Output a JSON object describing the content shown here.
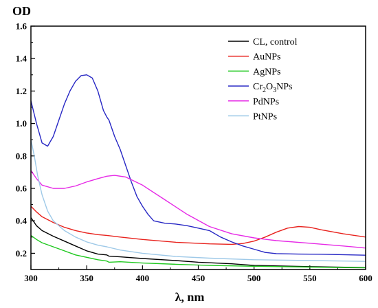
{
  "chart_data": {
    "type": "line",
    "ylabel": "OD",
    "xlabel": "λ, nm",
    "xlim": [
      300,
      600
    ],
    "ylim": [
      0.1,
      1.6
    ],
    "xticks": [
      300,
      350,
      400,
      450,
      500,
      550,
      600
    ],
    "yticks": [
      0.2,
      0.4,
      0.6,
      0.8,
      1.0,
      1.2,
      1.4,
      1.6
    ],
    "ytick_labels": [
      "0.2",
      "0.4",
      "0.6",
      "0.8",
      "1.0",
      "1.2",
      "1.4",
      "1.6"
    ],
    "legend_position": "top-right",
    "series": [
      {
        "name": "CL, control",
        "legend": [
          "CL, control"
        ],
        "color": "#000000",
        "points": [
          [
            300,
            0.42
          ],
          [
            305,
            0.37
          ],
          [
            310,
            0.34
          ],
          [
            320,
            0.305
          ],
          [
            330,
            0.275
          ],
          [
            340,
            0.245
          ],
          [
            350,
            0.215
          ],
          [
            360,
            0.195
          ],
          [
            368,
            0.19
          ],
          [
            370,
            0.182
          ],
          [
            380,
            0.178
          ],
          [
            400,
            0.168
          ],
          [
            430,
            0.155
          ],
          [
            450,
            0.145
          ],
          [
            480,
            0.135
          ],
          [
            500,
            0.125
          ],
          [
            550,
            0.118
          ],
          [
            600,
            0.112
          ]
        ]
      },
      {
        "name": "AuNPs",
        "legend": [
          "AuNPs"
        ],
        "color": "#e8221d",
        "points": [
          [
            300,
            0.49
          ],
          [
            305,
            0.455
          ],
          [
            310,
            0.425
          ],
          [
            320,
            0.39
          ],
          [
            330,
            0.36
          ],
          [
            340,
            0.34
          ],
          [
            350,
            0.325
          ],
          [
            360,
            0.315
          ],
          [
            368,
            0.31
          ],
          [
            380,
            0.3
          ],
          [
            400,
            0.285
          ],
          [
            430,
            0.268
          ],
          [
            460,
            0.258
          ],
          [
            480,
            0.255
          ],
          [
            490,
            0.26
          ],
          [
            500,
            0.275
          ],
          [
            510,
            0.3
          ],
          [
            520,
            0.33
          ],
          [
            530,
            0.355
          ],
          [
            540,
            0.365
          ],
          [
            550,
            0.36
          ],
          [
            560,
            0.345
          ],
          [
            580,
            0.32
          ],
          [
            600,
            0.3
          ]
        ]
      },
      {
        "name": "AgNPs",
        "legend": [
          "AgNPs"
        ],
        "color": "#1ec81e",
        "points": [
          [
            300,
            0.31
          ],
          [
            305,
            0.285
          ],
          [
            310,
            0.265
          ],
          [
            320,
            0.24
          ],
          [
            330,
            0.215
          ],
          [
            340,
            0.19
          ],
          [
            350,
            0.175
          ],
          [
            360,
            0.16
          ],
          [
            368,
            0.152
          ],
          [
            370,
            0.145
          ],
          [
            380,
            0.148
          ],
          [
            400,
            0.14
          ],
          [
            430,
            0.132
          ],
          [
            460,
            0.125
          ],
          [
            500,
            0.12
          ],
          [
            550,
            0.115
          ],
          [
            600,
            0.11
          ]
        ]
      },
      {
        "name": "Cr2O3NPs",
        "legend": [
          "Cr",
          "2",
          "O",
          "3",
          "NPs"
        ],
        "color": "#2727c4",
        "points": [
          [
            300,
            1.14
          ],
          [
            305,
            1.0
          ],
          [
            310,
            0.88
          ],
          [
            315,
            0.86
          ],
          [
            320,
            0.92
          ],
          [
            325,
            1.02
          ],
          [
            330,
            1.12
          ],
          [
            335,
            1.2
          ],
          [
            340,
            1.26
          ],
          [
            345,
            1.295
          ],
          [
            350,
            1.3
          ],
          [
            355,
            1.28
          ],
          [
            360,
            1.2
          ],
          [
            365,
            1.08
          ],
          [
            368,
            1.04
          ],
          [
            370,
            1.02
          ],
          [
            375,
            0.92
          ],
          [
            380,
            0.84
          ],
          [
            385,
            0.74
          ],
          [
            390,
            0.64
          ],
          [
            395,
            0.55
          ],
          [
            400,
            0.49
          ],
          [
            405,
            0.44
          ],
          [
            410,
            0.4
          ],
          [
            420,
            0.385
          ],
          [
            430,
            0.38
          ],
          [
            440,
            0.37
          ],
          [
            450,
            0.355
          ],
          [
            460,
            0.34
          ],
          [
            470,
            0.3
          ],
          [
            480,
            0.27
          ],
          [
            490,
            0.245
          ],
          [
            500,
            0.225
          ],
          [
            510,
            0.205
          ],
          [
            520,
            0.198
          ],
          [
            540,
            0.195
          ],
          [
            560,
            0.194
          ],
          [
            600,
            0.188
          ]
        ]
      },
      {
        "name": "PdNPs",
        "legend": [
          "PdNPs"
        ],
        "color": "#e62ae6",
        "points": [
          [
            300,
            0.71
          ],
          [
            305,
            0.66
          ],
          [
            310,
            0.62
          ],
          [
            320,
            0.6
          ],
          [
            330,
            0.6
          ],
          [
            340,
            0.615
          ],
          [
            350,
            0.64
          ],
          [
            360,
            0.66
          ],
          [
            368,
            0.675
          ],
          [
            375,
            0.68
          ],
          [
            385,
            0.67
          ],
          [
            400,
            0.62
          ],
          [
            420,
            0.53
          ],
          [
            440,
            0.44
          ],
          [
            460,
            0.365
          ],
          [
            480,
            0.32
          ],
          [
            500,
            0.295
          ],
          [
            520,
            0.278
          ],
          [
            550,
            0.262
          ],
          [
            580,
            0.245
          ],
          [
            600,
            0.232
          ]
        ]
      },
      {
        "name": "PtNPs",
        "legend": [
          "PtNPs"
        ],
        "color": "#9ec9e8",
        "points": [
          [
            300,
            0.9
          ],
          [
            303,
            0.8
          ],
          [
            306,
            0.68
          ],
          [
            310,
            0.56
          ],
          [
            315,
            0.46
          ],
          [
            320,
            0.4
          ],
          [
            330,
            0.34
          ],
          [
            340,
            0.3
          ],
          [
            350,
            0.27
          ],
          [
            360,
            0.25
          ],
          [
            368,
            0.24
          ],
          [
            380,
            0.22
          ],
          [
            400,
            0.2
          ],
          [
            430,
            0.18
          ],
          [
            460,
            0.17
          ],
          [
            500,
            0.16
          ],
          [
            550,
            0.155
          ],
          [
            600,
            0.15
          ]
        ]
      }
    ]
  }
}
